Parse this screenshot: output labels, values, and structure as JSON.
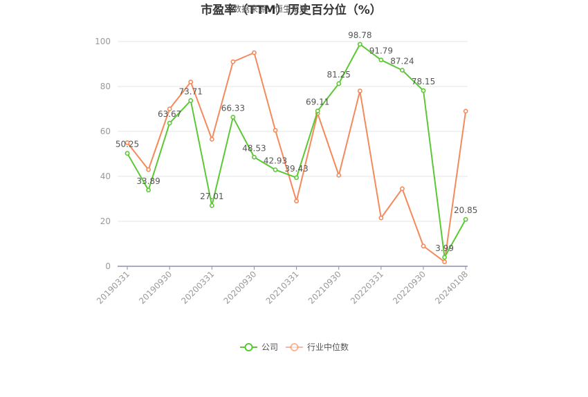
{
  "chart_data": {
    "type": "line",
    "title": "市盈率（TTM）历史百分位（%）",
    "watermark": "数据来源：恒生聚源",
    "xlabel": "",
    "ylabel": "",
    "ylim": [
      0,
      100
    ],
    "yticks": [
      0,
      20,
      40,
      60,
      80,
      100
    ],
    "x": [
      "20190331",
      "20190630",
      "20190930",
      "20191231",
      "20200331",
      "20200630",
      "20200930",
      "20201231",
      "20210331",
      "20210630",
      "20210930",
      "20211231",
      "20220331",
      "20220630",
      "20220930",
      "20221231",
      "20240108"
    ],
    "xticks_shown": [
      "20190331",
      "20190930",
      "20200331",
      "20200930",
      "20210331",
      "20210930",
      "20220331",
      "20220930",
      "20240108"
    ],
    "grid": true,
    "legend_position": "bottom",
    "series": [
      {
        "name": "公司",
        "color": "#5ac833",
        "values": [
          50.25,
          33.89,
          63.67,
          73.71,
          27.01,
          66.33,
          48.53,
          42.93,
          39.43,
          69.11,
          81.25,
          98.78,
          91.79,
          87.24,
          78.15,
          3.99,
          20.85
        ],
        "labels": [
          "50.25",
          "33.89",
          "63.67",
          "73.71",
          "27.01",
          "66.33",
          "48.53",
          "42.93",
          "39.43",
          "69.11",
          "81.25",
          "98.78",
          "91.79",
          "87.24",
          "78.15",
          "3.99",
          "20.85"
        ]
      },
      {
        "name": "行业中位数",
        "color": "#f5895a",
        "values": [
          55.0,
          43.0,
          70.0,
          82.0,
          56.5,
          91.0,
          95.0,
          60.5,
          29.0,
          68.0,
          40.5,
          78.0,
          21.5,
          34.5,
          9.0,
          2.0,
          69.0
        ]
      }
    ]
  }
}
